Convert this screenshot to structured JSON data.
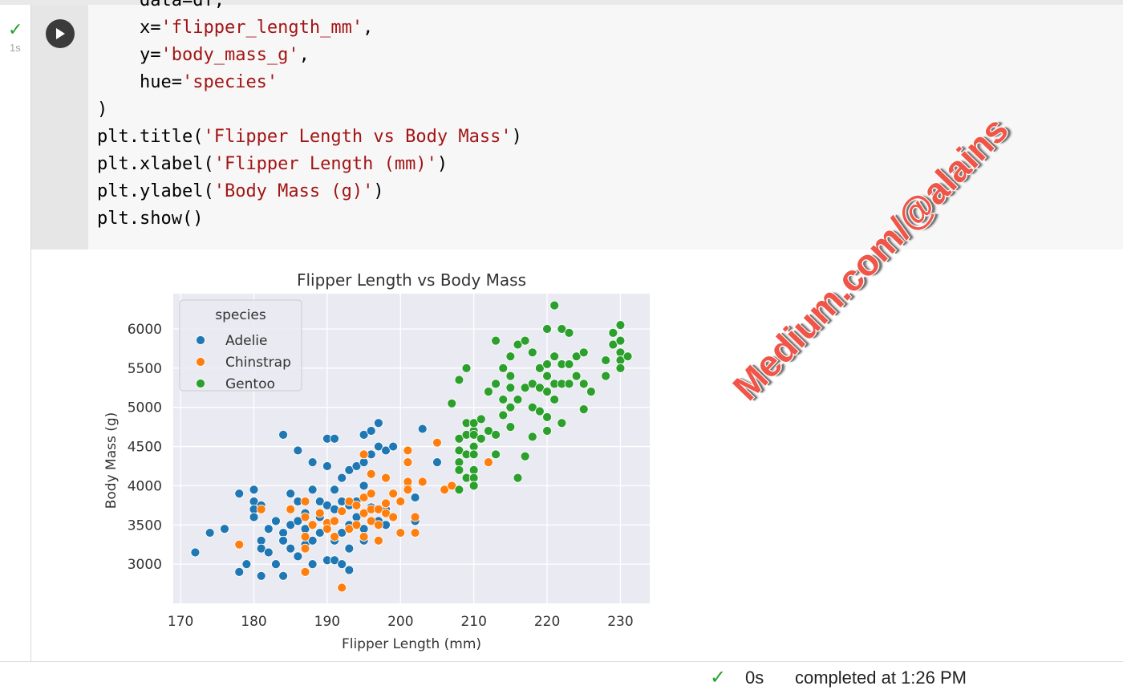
{
  "cell": {
    "exec_time": "1s",
    "code_lines": [
      [
        {
          "t": "    data=df,",
          "c": ""
        }
      ],
      [
        {
          "t": "    x=",
          "c": ""
        },
        {
          "t": "'flipper_length_mm'",
          "c": "str"
        },
        {
          "t": ",",
          "c": ""
        }
      ],
      [
        {
          "t": "    y=",
          "c": ""
        },
        {
          "t": "'body_mass_g'",
          "c": "str"
        },
        {
          "t": ",",
          "c": ""
        }
      ],
      [
        {
          "t": "    hue=",
          "c": ""
        },
        {
          "t": "'species'",
          "c": "str"
        }
      ],
      [
        {
          "t": ")",
          "c": ""
        }
      ],
      [
        {
          "t": "plt.title(",
          "c": ""
        },
        {
          "t": "'Flipper Length vs Body Mass'",
          "c": "str"
        },
        {
          "t": ")",
          "c": ""
        }
      ],
      [
        {
          "t": "plt.xlabel(",
          "c": ""
        },
        {
          "t": "'Flipper Length (mm)'",
          "c": "str"
        },
        {
          "t": ")",
          "c": ""
        }
      ],
      [
        {
          "t": "plt.ylabel(",
          "c": ""
        },
        {
          "t": "'Body Mass (g)'",
          "c": "str"
        },
        {
          "t": ")",
          "c": ""
        }
      ],
      [
        {
          "t": "plt.show()",
          "c": ""
        }
      ]
    ]
  },
  "watermark": "Medium.com/@alains",
  "status": {
    "time": "0s",
    "text": "completed at 1:26 PM"
  },
  "chart_data": {
    "type": "scatter",
    "title": "Flipper Length vs Body Mass",
    "xlabel": "Flipper Length (mm)",
    "ylabel": "Body Mass (g)",
    "xlim": [
      169,
      234
    ],
    "ylim": [
      2500,
      6450
    ],
    "xticks": [
      170,
      180,
      190,
      200,
      210,
      220,
      230
    ],
    "yticks": [
      3000,
      3500,
      4000,
      4500,
      5000,
      5500,
      6000
    ],
    "grid": true,
    "legend": {
      "title": "species",
      "placement": "top-left"
    },
    "series": [
      {
        "name": "Adelie",
        "color": "#1f77b4",
        "points": [
          [
            172,
            3150
          ],
          [
            174,
            3400
          ],
          [
            176,
            3450
          ],
          [
            178,
            2900
          ],
          [
            178,
            3900
          ],
          [
            179,
            3000
          ],
          [
            180,
            3950
          ],
          [
            180,
            3800
          ],
          [
            180,
            3700
          ],
          [
            180,
            3600
          ],
          [
            181,
            3300
          ],
          [
            181,
            3200
          ],
          [
            181,
            3750
          ],
          [
            181,
            2850
          ],
          [
            182,
            3450
          ],
          [
            182,
            3150
          ],
          [
            183,
            3550
          ],
          [
            183,
            3000
          ],
          [
            184,
            4650
          ],
          [
            184,
            3400
          ],
          [
            184,
            3300
          ],
          [
            184,
            2850
          ],
          [
            185,
            3500
          ],
          [
            185,
            3900
          ],
          [
            185,
            3200
          ],
          [
            186,
            4450
          ],
          [
            186,
            3550
          ],
          [
            186,
            3100
          ],
          [
            186,
            3800
          ],
          [
            187,
            3450
          ],
          [
            187,
            3250
          ],
          [
            187,
            3650
          ],
          [
            187,
            2900
          ],
          [
            188,
            4300
          ],
          [
            188,
            3950
          ],
          [
            188,
            3300
          ],
          [
            188,
            3000
          ],
          [
            189,
            3400
          ],
          [
            189,
            3800
          ],
          [
            189,
            3600
          ],
          [
            190,
            4600
          ],
          [
            190,
            4250
          ],
          [
            190,
            3750
          ],
          [
            190,
            3500
          ],
          [
            190,
            3050
          ],
          [
            191,
            4600
          ],
          [
            191,
            3950
          ],
          [
            191,
            3700
          ],
          [
            191,
            3300
          ],
          [
            191,
            3050
          ],
          [
            192,
            4100
          ],
          [
            192,
            3800
          ],
          [
            192,
            3400
          ],
          [
            192,
            3000
          ],
          [
            193,
            4200
          ],
          [
            193,
            3750
          ],
          [
            193,
            3500
          ],
          [
            193,
            3200
          ],
          [
            193,
            2925
          ],
          [
            194,
            4250
          ],
          [
            194,
            3800
          ],
          [
            194,
            3600
          ],
          [
            195,
            4650
          ],
          [
            195,
            4300
          ],
          [
            195,
            4000
          ],
          [
            195,
            3450
          ],
          [
            195,
            3300
          ],
          [
            196,
            4700
          ],
          [
            196,
            4400
          ],
          [
            196,
            4150
          ],
          [
            196,
            3725
          ],
          [
            197,
            4800
          ],
          [
            197,
            4500
          ],
          [
            197,
            3550
          ],
          [
            198,
            4450
          ],
          [
            198,
            3700
          ],
          [
            198,
            3500
          ],
          [
            199,
            4500
          ],
          [
            200,
            3800
          ],
          [
            201,
            3975
          ],
          [
            202,
            3550
          ],
          [
            202,
            3850
          ],
          [
            203,
            4725
          ],
          [
            205,
            4300
          ]
        ]
      },
      {
        "name": "Chinstrap",
        "color": "#ff7f0e",
        "points": [
          [
            178,
            3250
          ],
          [
            181,
            3700
          ],
          [
            185,
            3700
          ],
          [
            187,
            3800
          ],
          [
            187,
            3600
          ],
          [
            187,
            3350
          ],
          [
            187,
            3200
          ],
          [
            187,
            2900
          ],
          [
            188,
            3500
          ],
          [
            189,
            3650
          ],
          [
            190,
            3525
          ],
          [
            190,
            3450
          ],
          [
            191,
            3350
          ],
          [
            191,
            3550
          ],
          [
            192,
            3675
          ],
          [
            192,
            2700
          ],
          [
            193,
            3800
          ],
          [
            193,
            3450
          ],
          [
            194,
            3750
          ],
          [
            194,
            3500
          ],
          [
            195,
            4400
          ],
          [
            195,
            3850
          ],
          [
            195,
            3650
          ],
          [
            195,
            3350
          ],
          [
            196,
            4150
          ],
          [
            196,
            3900
          ],
          [
            196,
            3700
          ],
          [
            196,
            3550
          ],
          [
            197,
            3700
          ],
          [
            197,
            3500
          ],
          [
            197,
            3300
          ],
          [
            198,
            4100
          ],
          [
            198,
            3775
          ],
          [
            198,
            3650
          ],
          [
            199,
            3900
          ],
          [
            199,
            3600
          ],
          [
            200,
            3400
          ],
          [
            200,
            3800
          ],
          [
            201,
            4300
          ],
          [
            201,
            4450
          ],
          [
            201,
            4050
          ],
          [
            201,
            3950
          ],
          [
            202,
            3600
          ],
          [
            202,
            3400
          ],
          [
            203,
            4050
          ],
          [
            205,
            4550
          ],
          [
            206,
            3950
          ],
          [
            207,
            4000
          ],
          [
            210,
            4800
          ],
          [
            212,
            4300
          ]
        ]
      },
      {
        "name": "Gentoo",
        "color": "#2ca02c",
        "points": [
          [
            207,
            5050
          ],
          [
            208,
            5350
          ],
          [
            208,
            4600
          ],
          [
            208,
            4450
          ],
          [
            208,
            4300
          ],
          [
            208,
            4200
          ],
          [
            208,
            3950
          ],
          [
            209,
            5500
          ],
          [
            209,
            4800
          ],
          [
            209,
            4650
          ],
          [
            209,
            4400
          ],
          [
            209,
            4100
          ],
          [
            210,
            4700
          ],
          [
            210,
            4800
          ],
          [
            210,
            4650
          ],
          [
            210,
            4500
          ],
          [
            210,
            4400
          ],
          [
            210,
            4200
          ],
          [
            210,
            4100
          ],
          [
            210,
            4000
          ],
          [
            211,
            4850
          ],
          [
            211,
            4600
          ],
          [
            212,
            5200
          ],
          [
            212,
            4700
          ],
          [
            213,
            5850
          ],
          [
            213,
            5300
          ],
          [
            213,
            4650
          ],
          [
            213,
            4400
          ],
          [
            214,
            5500
          ],
          [
            214,
            5100
          ],
          [
            214,
            4900
          ],
          [
            215,
            5650
          ],
          [
            215,
            5400
          ],
          [
            215,
            5250
          ],
          [
            215,
            5000
          ],
          [
            215,
            4750
          ],
          [
            216,
            5800
          ],
          [
            216,
            5100
          ],
          [
            216,
            4100
          ],
          [
            217,
            5850
          ],
          [
            217,
            5250
          ],
          [
            217,
            4375
          ],
          [
            218,
            5700
          ],
          [
            218,
            5300
          ],
          [
            218,
            5000
          ],
          [
            218,
            4625
          ],
          [
            219,
            5500
          ],
          [
            219,
            5250
          ],
          [
            219,
            4950
          ],
          [
            220,
            6000
          ],
          [
            220,
            5550
          ],
          [
            220,
            5400
          ],
          [
            220,
            5200
          ],
          [
            220,
            4875
          ],
          [
            220,
            4700
          ],
          [
            221,
            6300
          ],
          [
            221,
            5650
          ],
          [
            221,
            5300
          ],
          [
            221,
            5100
          ],
          [
            222,
            6000
          ],
          [
            222,
            5550
          ],
          [
            222,
            5300
          ],
          [
            222,
            4800
          ],
          [
            223,
            5950
          ],
          [
            223,
            5550
          ],
          [
            223,
            5300
          ],
          [
            224,
            5650
          ],
          [
            224,
            5400
          ],
          [
            225,
            5700
          ],
          [
            225,
            5300
          ],
          [
            225,
            4975
          ],
          [
            226,
            5200
          ],
          [
            228,
            5600
          ],
          [
            228,
            5400
          ],
          [
            229,
            5950
          ],
          [
            229,
            5800
          ],
          [
            230,
            6050
          ],
          [
            230,
            5850
          ],
          [
            230,
            5700
          ],
          [
            230,
            5600
          ],
          [
            230,
            5500
          ],
          [
            231,
            5650
          ]
        ]
      }
    ]
  }
}
